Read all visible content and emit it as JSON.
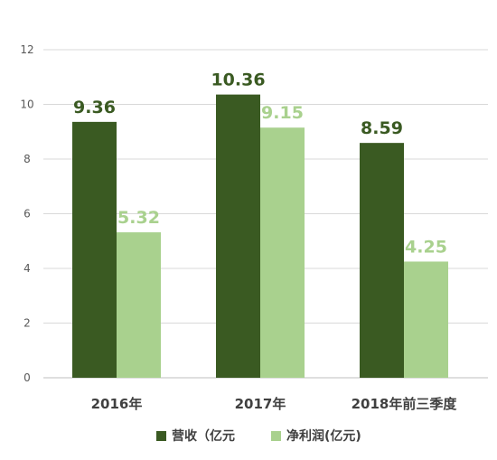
{
  "chart_data": {
    "type": "bar",
    "categories": [
      "2016年",
      "2017年",
      "2018年前三季度"
    ],
    "series": [
      {
        "name": "营收（亿元",
        "color": "#3a5a22",
        "label_color": "#3a5a22",
        "values": [
          9.36,
          10.36,
          8.59
        ]
      },
      {
        "name": "净利润(亿元)",
        "color": "#a9d18e",
        "label_color": "#a9d18e",
        "values": [
          5.32,
          9.15,
          4.25
        ]
      }
    ],
    "value_labels": [
      [
        "9.36",
        "10.36",
        "8.59"
      ],
      [
        "5.32",
        "9.15",
        "4.25"
      ]
    ],
    "title": "",
    "xlabel": "",
    "ylabel": "",
    "ylim": [
      0,
      12
    ],
    "yticks": [
      0,
      2,
      4,
      6,
      8,
      10,
      12
    ],
    "grid": true,
    "legend_position": "bottom"
  }
}
